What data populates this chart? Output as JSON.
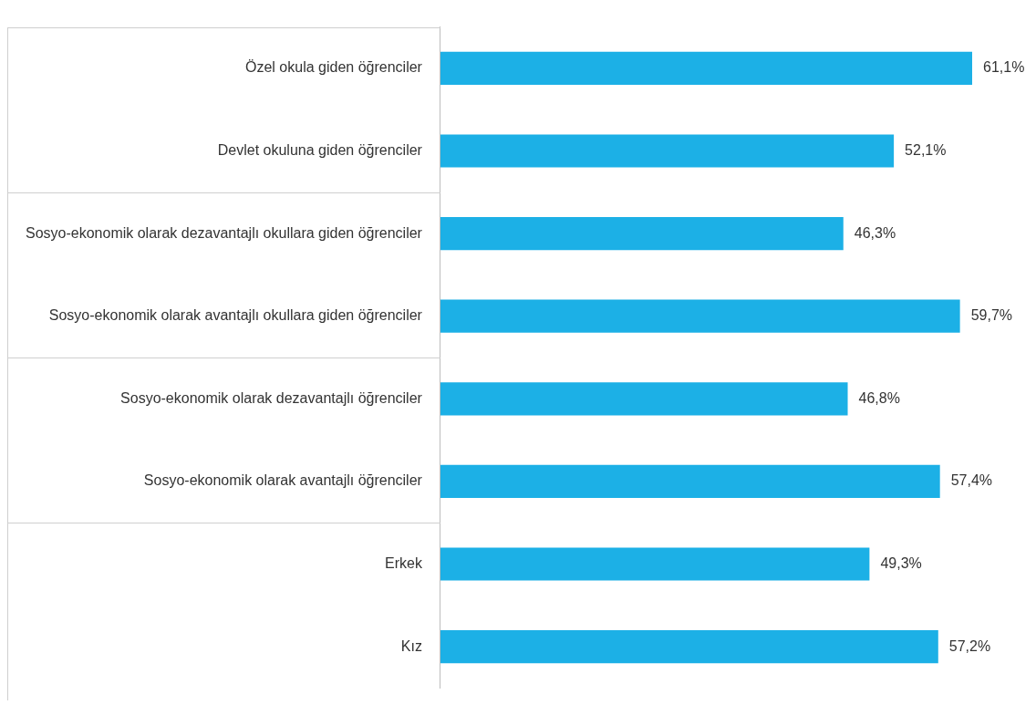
{
  "chart_data": {
    "type": "bar",
    "orientation": "horizontal",
    "categories": [
      "Özel okula giden öğrenciler",
      "Devlet okuluna giden öğrenciler",
      "Sosyo-ekonomik olarak dezavantajlı okullara giden öğrenciler",
      "Sosyo-ekonomik olarak avantajlı okullara giden öğrenciler",
      "Sosyo-ekonomik olarak dezavantajlı öğrenciler",
      "Sosyo-ekonomik olarak avantajlı öğrenciler",
      "Erkek",
      "Kız"
    ],
    "values": [
      61.1,
      52.1,
      46.3,
      59.7,
      46.8,
      57.4,
      49.3,
      57.2
    ],
    "value_labels": [
      "61,1%",
      "52,1%",
      "46,3%",
      "59,7%",
      "46,8%",
      "57,4%",
      "49,3%",
      "57,2%"
    ],
    "color": "#1cb0e6",
    "tick_labels": "y",
    "grid": false,
    "legend": false
  }
}
